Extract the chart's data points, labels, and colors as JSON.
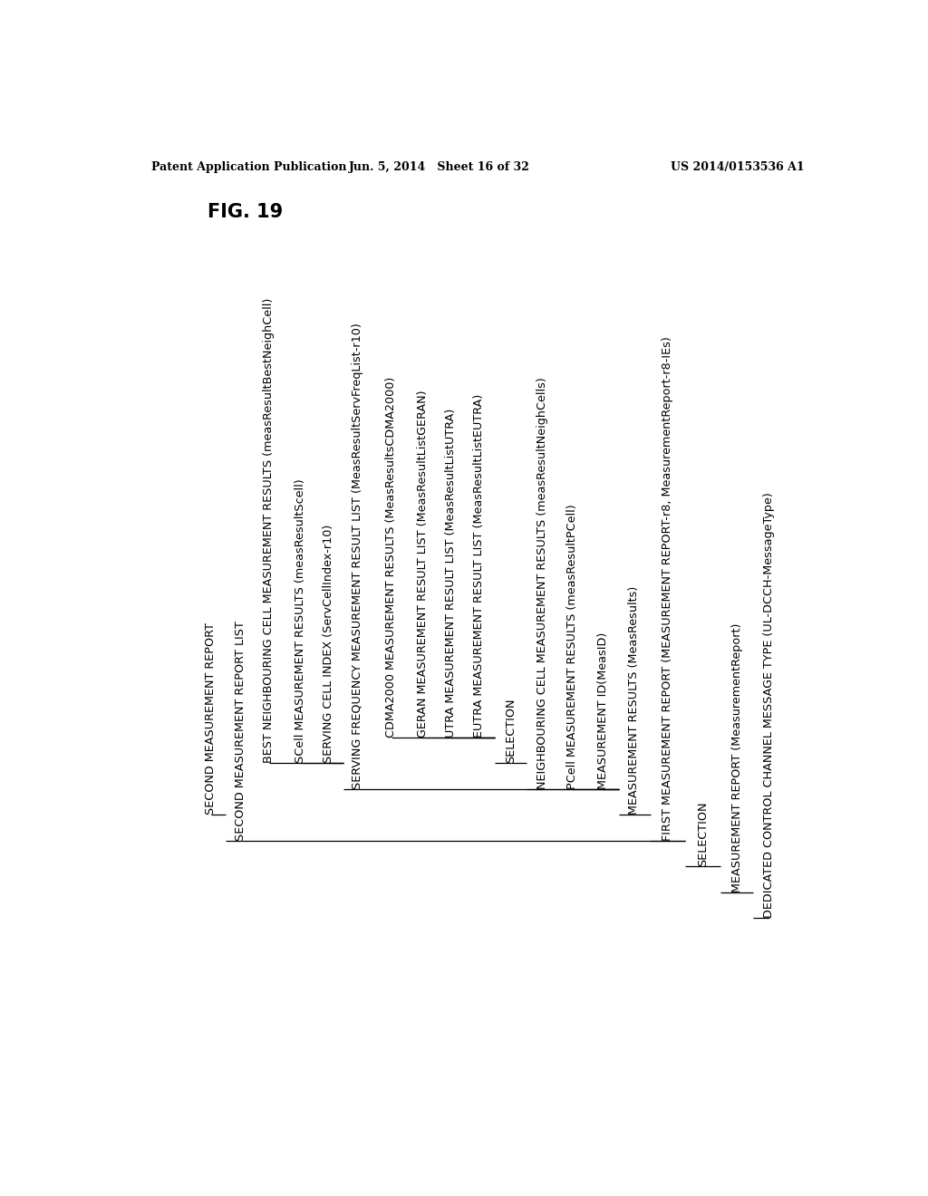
{
  "fig_label": "FIG. 19",
  "header_left": "Patent Application Publication",
  "header_center": "Jun. 5, 2014   Sheet 16 of 32",
  "header_right": "US 2014/0153536 A1",
  "background_color": "#ffffff",
  "text_color": "#000000",
  "tree_items": [
    {
      "text": "DEDICATED CONTROL CHANNEL MESSAGE TYPE (UL-DCCH-MessageType)",
      "level": 0
    },
    {
      "text": "MEASUREMENT REPORT (MeasurementReport)",
      "level": 1
    },
    {
      "text": "SELECTION",
      "level": 2
    },
    {
      "text": "FIRST MEASUREMENT REPORT (MEASUREMENT REPORT-r8, MeasurementReport-r8-IEs)",
      "level": 3
    },
    {
      "text": "MEASUREMENT RESULTS (MeasResults)",
      "level": 4
    },
    {
      "text": "MEASUREMENT ID(MeasID)",
      "level": 5
    },
    {
      "text": "PCell MEASUREMENT RESULTS (measResultPCell)",
      "level": 5
    },
    {
      "text": "NEIGHBOURING CELL MEASUREMENT RESULTS (measResultNeighCells)",
      "level": 5
    },
    {
      "text": "SELECTION",
      "level": 6
    },
    {
      "text": "EUTRA MEASUREMENT RESULT LIST (MeasResultListEUTRA)",
      "level": 7
    },
    {
      "text": "UTRA MEASUREMENT RESULT LIST (MeasResultListUTRA)",
      "level": 7
    },
    {
      "text": "GERAN MEASUREMENT RESULT LIST (MeasResultListGERAN)",
      "level": 7
    },
    {
      "text": "CDMA2000 MEASUREMENT RESULTS (MeasResultsCDMA2000)",
      "level": 7
    },
    {
      "text": "SERVING FREQUENCY MEASUREMENT RESULT LIST (MeasResultServFreqList-r10)",
      "level": 5
    },
    {
      "text": "SERVING CELL INDEX (ServCellIndex-r10)",
      "level": 6
    },
    {
      "text": "SCell MEASUREMENT RESULTS (measResultScell)",
      "level": 6
    },
    {
      "text": "BEST NEIGHBOURING CELL MEASUREMENT RESULTS (measResultBestNeighCell)",
      "level": 6
    },
    {
      "text": "SECOND MEASUREMENT REPORT LIST",
      "level": 3
    },
    {
      "text": "SECOND MEASUREMENT REPORT",
      "level": 4
    }
  ],
  "x_positions": [
    9.3,
    8.85,
    8.35,
    7.85,
    7.38,
    6.93,
    6.5,
    6.07,
    5.62,
    5.17,
    4.77,
    4.37,
    3.92,
    3.44,
    3.03,
    2.63,
    2.18,
    1.78,
    1.35
  ],
  "level_y": {
    "0": 2.1,
    "1": 2.47,
    "2": 2.84,
    "3": 3.21,
    "4": 3.58,
    "5": 3.95,
    "6": 4.32,
    "7": 4.69
  },
  "connections": [
    {
      "parent": 0,
      "children": [
        1
      ]
    },
    {
      "parent": 1,
      "children": [
        2
      ]
    },
    {
      "parent": 2,
      "children": [
        3,
        17
      ]
    },
    {
      "parent": 3,
      "children": [
        4
      ]
    },
    {
      "parent": 4,
      "children": [
        5,
        6,
        7,
        13
      ]
    },
    {
      "parent": 7,
      "children": [
        8
      ]
    },
    {
      "parent": 8,
      "children": [
        9,
        10,
        11,
        12
      ]
    },
    {
      "parent": 13,
      "children": [
        14,
        15,
        16
      ]
    },
    {
      "parent": 17,
      "children": [
        18
      ]
    }
  ],
  "font_size": 9.2,
  "line_width": 0.9
}
